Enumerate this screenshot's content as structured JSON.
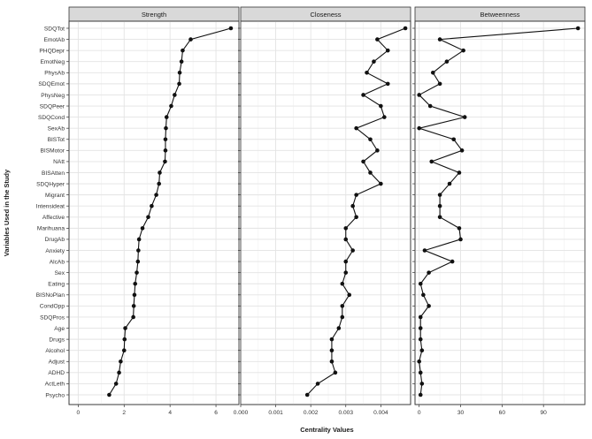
{
  "chart_data": {
    "type": "line",
    "xlabel": "Centrality Values",
    "ylabel": "Variables Used in the Study",
    "categories": [
      "SDQTot",
      "EmotAb",
      "PHQDepr",
      "EmotNeg",
      "PhysAb",
      "SDQEmot",
      "PhysNeg",
      "SDQPeer",
      "SDQCond",
      "SexAb",
      "BISTot",
      "BISMotor",
      "NAtt",
      "BISAtten",
      "SDQHyper",
      "Migrant",
      "Intensideat",
      "Affective",
      "Marihuana",
      "DrugAb",
      "Anxiety",
      "AlcAb",
      "Sex",
      "Eating",
      "BISNoPlan",
      "CondOpp",
      "SDQPros",
      "Age",
      "Drugs",
      "Alcohol",
      "Adjust",
      "ADHD",
      "ActLeth",
      "Psycho"
    ],
    "panels": [
      {
        "title": "Strength",
        "xlim": [
          -0.4,
          7.0
        ],
        "ticks": [
          0,
          2,
          4,
          6
        ],
        "tick_labels": [
          "0",
          "2",
          "4",
          "6"
        ],
        "values": [
          6.65,
          4.9,
          4.55,
          4.5,
          4.42,
          4.4,
          4.2,
          4.05,
          3.85,
          3.82,
          3.8,
          3.8,
          3.78,
          3.55,
          3.52,
          3.4,
          3.2,
          3.05,
          2.8,
          2.65,
          2.62,
          2.6,
          2.55,
          2.48,
          2.45,
          2.42,
          2.4,
          2.05,
          2.02,
          2.0,
          1.85,
          1.78,
          1.65,
          1.35
        ]
      },
      {
        "title": "Closeness",
        "xlim": [
          0.0,
          0.00485
        ],
        "ticks": [
          0.0,
          0.001,
          0.002,
          0.003,
          0.004
        ],
        "tick_labels": [
          "0.000",
          "0.001",
          "0.002",
          "0.003",
          "0.004"
        ],
        "values": [
          0.0047,
          0.0039,
          0.0042,
          0.0038,
          0.0036,
          0.0042,
          0.0035,
          0.004,
          0.0041,
          0.0033,
          0.0037,
          0.0039,
          0.0035,
          0.0037,
          0.004,
          0.0033,
          0.0032,
          0.0033,
          0.003,
          0.003,
          0.0032,
          0.003,
          0.003,
          0.0029,
          0.0031,
          0.0029,
          0.0029,
          0.0028,
          0.0026,
          0.0026,
          0.0026,
          0.0027,
          0.0022,
          0.0019
        ]
      },
      {
        "title": "Betweenness",
        "xlim": [
          -3,
          120
        ],
        "ticks": [
          0,
          30,
          60,
          90
        ],
        "tick_labels": [
          "0",
          "30",
          "60",
          "90"
        ],
        "values": [
          115,
          15,
          32,
          20,
          10,
          15,
          0,
          8,
          33,
          0,
          25,
          31,
          9,
          29,
          22,
          15,
          15,
          15,
          29,
          30,
          4,
          24,
          7,
          1,
          3,
          7,
          1,
          1,
          1,
          2,
          0,
          1,
          2,
          1
        ]
      }
    ]
  }
}
